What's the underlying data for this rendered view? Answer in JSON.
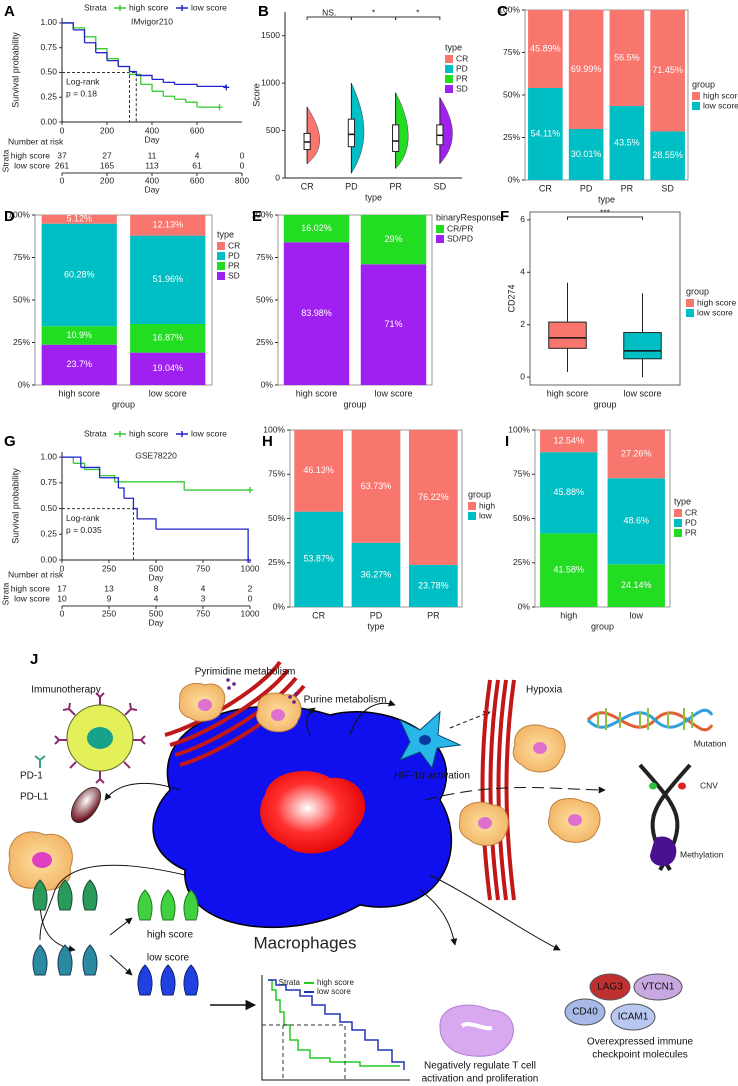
{
  "chart_data": [
    {
      "panel": "A",
      "type": "survival",
      "title": "IMvigor210",
      "legend_title": "Strata",
      "x_label": "Day",
      "y_label": "Survival probability",
      "xlim": [
        0,
        800
      ],
      "xticks": [
        0,
        200,
        400,
        600
      ],
      "ylim": [
        0,
        1.05
      ],
      "yticks": [
        {
          "value": 0,
          "label": "0.00"
        },
        0.25,
        {
          "value": 0.5,
          "label": "0.50"
        },
        0.75,
        {
          "value": 1,
          "label": "1.00"
        }
      ],
      "annotations": [
        "Log-rank",
        "p = 0.18"
      ],
      "series": [
        {
          "name": "high score",
          "color": "#33CC33",
          "x": [
            0,
            50,
            100,
            150,
            200,
            250,
            300,
            350,
            400,
            450,
            500,
            550,
            600,
            700
          ],
          "values": [
            1,
            0.95,
            0.86,
            0.74,
            0.64,
            0.56,
            0.48,
            0.38,
            0.31,
            0.26,
            0.23,
            0.2,
            0.15,
            0.15
          ],
          "median": 300
        },
        {
          "name": "low score",
          "color": "#2222CC",
          "x": [
            0,
            50,
            100,
            150,
            200,
            250,
            300,
            330,
            400,
            450,
            500,
            600,
            730
          ],
          "values": [
            1,
            0.93,
            0.8,
            0.7,
            0.62,
            0.56,
            0.51,
            0.47,
            0.43,
            0.4,
            0.38,
            0.36,
            0.35
          ],
          "median": 330
        }
      ],
      "risk_table": {
        "title": "Number at risk",
        "y_label": "Strata",
        "x_label": "Day",
        "xticks": [
          0,
          200,
          400,
          600,
          800
        ],
        "rows": [
          [
            37,
            27,
            11,
            4,
            0
          ],
          [
            261,
            165,
            113,
            61,
            0
          ]
        ]
      }
    },
    {
      "panel": "B",
      "type": "box",
      "violin": true,
      "y_label": "Score",
      "x_label": "type",
      "legend_title": "type",
      "categories": [
        "CR",
        "PD",
        "PR",
        "SD"
      ],
      "colors": [
        "#F8766D",
        "#00BFC4",
        "#22DD22",
        "#A020F0"
      ],
      "ylim": [
        0,
        1750
      ],
      "yticks": [
        0,
        500,
        1000,
        1500
      ],
      "significance": [
        "NS.",
        "*",
        "*"
      ],
      "boxes": [
        {
          "min": 150,
          "q1": 300,
          "median": 380,
          "q3": 470,
          "max": 750
        },
        {
          "min": 50,
          "q1": 330,
          "median": 460,
          "q3": 620,
          "max": 1000
        },
        {
          "min": 100,
          "q1": 280,
          "median": 390,
          "q3": 560,
          "max": 900
        },
        {
          "min": 150,
          "q1": 350,
          "median": 450,
          "q3": 560,
          "max": 850
        }
      ]
    },
    {
      "panel": "C",
      "type": "stacked_bar",
      "x_label": "type",
      "legend_title": "group",
      "categories": [
        "CR",
        "PD",
        "PR",
        "SD"
      ],
      "ylim": [
        0,
        100
      ],
      "yticks": [
        {
          "value": 0,
          "label": "0%"
        },
        {
          "value": 25,
          "label": "25%"
        },
        {
          "value": 50,
          "label": "50%"
        },
        {
          "value": 75,
          "label": "75%"
        },
        {
          "value": 100,
          "label": "100%"
        }
      ],
      "series": [
        {
          "name": "high score",
          "color": "#F8766D",
          "values": [
            45.89,
            69.99,
            56.5,
            71.45
          ],
          "value_labels": [
            "45.89%",
            "69.99%",
            "56.5%",
            "71.45%"
          ]
        },
        {
          "name": "low score",
          "color": "#00BFC4",
          "values": [
            54.11,
            30.01,
            43.5,
            28.55
          ],
          "value_labels": [
            "54.11%",
            "30.01%",
            "43.5%",
            "28.55%"
          ]
        }
      ]
    },
    {
      "panel": "D",
      "type": "stacked_bar",
      "x_label": "group",
      "legend_title": "type",
      "categories": [
        "high score",
        "low score"
      ],
      "ylim": [
        0,
        100
      ],
      "yticks": [
        {
          "value": 0,
          "label": "0%"
        },
        {
          "value": 25,
          "label": "25%"
        },
        {
          "value": 50,
          "label": "50%"
        },
        {
          "value": 75,
          "label": "75%"
        },
        {
          "value": 100,
          "label": "100%"
        }
      ],
      "series": [
        {
          "name": "CR",
          "color": "#F8766D",
          "values": [
            5.12,
            12.13
          ],
          "value_labels": [
            "5.12%",
            "12.13%"
          ]
        },
        {
          "name": "PD",
          "color": "#00BFC4",
          "values": [
            60.28,
            51.96
          ],
          "value_labels": [
            "60.28%",
            "51.96%"
          ]
        },
        {
          "name": "PR",
          "color": "#22DD22",
          "values": [
            10.9,
            16.87
          ],
          "value_labels": [
            "10.9%",
            "16.87%"
          ]
        },
        {
          "name": "SD",
          "color": "#A020F0",
          "values": [
            23.7,
            19.04
          ],
          "value_labels": [
            "23.7%",
            "19.04%"
          ]
        }
      ]
    },
    {
      "panel": "E",
      "type": "stacked_bar",
      "x_label": "group",
      "legend_title": "binaryResponse",
      "categories": [
        "high score",
        "low score"
      ],
      "ylim": [
        0,
        100
      ],
      "yticks": [
        {
          "value": 0,
          "label": "0%"
        },
        {
          "value": 25,
          "label": "25%"
        },
        {
          "value": 50,
          "label": "50%"
        },
        {
          "value": 75,
          "label": "75%"
        },
        {
          "value": 100,
          "label": "100%"
        }
      ],
      "series": [
        {
          "name": "CR/PR",
          "color": "#22DD22",
          "values": [
            16.02,
            29
          ],
          "value_labels": [
            "16.02%",
            "29%"
          ]
        },
        {
          "name": "SD/PD",
          "color": "#A020F0",
          "values": [
            83.98,
            71
          ],
          "value_labels": [
            "83.98%",
            "71%"
          ]
        }
      ]
    },
    {
      "panel": "F",
      "type": "box",
      "violin": false,
      "y_label": "CD274",
      "x_label": "group",
      "legend_title": "group",
      "categories": [
        "high score",
        "low score"
      ],
      "colors": [
        "#F8766D",
        "#00BFC4"
      ],
      "ylim": [
        -0.3,
        6.3
      ],
      "yticks": [
        0,
        2,
        4,
        6
      ],
      "significance": [
        "***"
      ],
      "boxes": [
        {
          "min": 0.2,
          "q1": 1.1,
          "median": 1.5,
          "q3": 2.1,
          "max": 3.6
        },
        {
          "min": 0,
          "q1": 0.7,
          "median": 1,
          "q3": 1.7,
          "max": 3.2
        }
      ]
    },
    {
      "panel": "G",
      "type": "survival",
      "title": "GSE78220",
      "legend_title": "Strata",
      "x_label": "Day",
      "y_label": "Survival probability",
      "xlim": [
        0,
        1000
      ],
      "xticks": [
        0,
        250,
        500,
        750,
        1000
      ],
      "ylim": [
        0,
        1.05
      ],
      "yticks": [
        {
          "value": 0,
          "label": "0.00"
        },
        0.25,
        {
          "value": 0.5,
          "label": "0.50"
        },
        0.75,
        {
          "value": 1,
          "label": "1.00"
        }
      ],
      "annotations": [
        "Log-rank",
        "p = 0.035"
      ],
      "series": [
        {
          "name": "high score",
          "color": "#33CC33",
          "x": [
            0,
            60,
            120,
            200,
            280,
            650,
            1000
          ],
          "values": [
            1,
            0.94,
            0.88,
            0.82,
            0.76,
            0.68,
            0.68
          ]
        },
        {
          "name": "low score",
          "color": "#2222CC",
          "x": [
            0,
            100,
            200,
            300,
            330,
            380,
            400,
            500,
            990
          ],
          "values": [
            1,
            0.9,
            0.8,
            0.7,
            0.6,
            0.5,
            0.4,
            0.3,
            0
          ],
          "median": 380
        }
      ],
      "risk_table": {
        "title": "Number at risk",
        "y_label": "Strata",
        "x_label": "Day",
        "xticks": [
          0,
          250,
          500,
          750,
          1000
        ],
        "rows": [
          [
            17,
            13,
            8,
            4,
            2
          ],
          [
            10,
            9,
            4,
            3,
            0
          ]
        ]
      }
    },
    {
      "panel": "H",
      "type": "stacked_bar",
      "x_label": "type",
      "legend_title": "group",
      "categories": [
        "CR",
        "PD",
        "PR"
      ],
      "ylim": [
        0,
        100
      ],
      "yticks": [
        {
          "value": 0,
          "label": "0%"
        },
        {
          "value": 25,
          "label": "25%"
        },
        {
          "value": 50,
          "label": "50%"
        },
        {
          "value": 75,
          "label": "75%"
        },
        {
          "value": 100,
          "label": "100%"
        }
      ],
      "series": [
        {
          "name": "high",
          "color": "#F8766D",
          "values": [
            46.13,
            63.73,
            76.22
          ],
          "value_labels": [
            "46.13%",
            "63.73%",
            "76.22%"
          ]
        },
        {
          "name": "low",
          "color": "#00BFC4",
          "values": [
            53.87,
            36.27,
            23.78
          ],
          "value_labels": [
            "53.87%",
            "36.27%",
            "23.78%"
          ]
        }
      ]
    },
    {
      "panel": "I",
      "type": "stacked_bar",
      "x_label": "group",
      "legend_title": "type",
      "categories": [
        "high",
        "low"
      ],
      "ylim": [
        0,
        100
      ],
      "yticks": [
        {
          "value": 0,
          "label": "0%"
        },
        {
          "value": 25,
          "label": "25%"
        },
        {
          "value": 50,
          "label": "50%"
        },
        {
          "value": 75,
          "label": "75%"
        },
        {
          "value": 100,
          "label": "100%"
        }
      ],
      "series": [
        {
          "name": "CR",
          "color": "#F8766D",
          "values": [
            12.54,
            27.26
          ],
          "value_labels": [
            "12.54%",
            "27.26%"
          ]
        },
        {
          "name": "PD",
          "color": "#00BFC4",
          "values": [
            45.88,
            48.6
          ],
          "value_labels": [
            "45.88%",
            "48.6%"
          ]
        },
        {
          "name": "PR",
          "color": "#22DD22",
          "values": [
            41.58,
            24.14
          ],
          "value_labels": [
            "41.58%",
            "24.14%"
          ]
        }
      ]
    }
  ],
  "diagram": {
    "label": "J",
    "immunotherapy": "Immunotherapy",
    "pd1": "PD-1",
    "pdl1": "PD-L1",
    "pyrimidine": "Pyrimidine metabolism",
    "purine": "Purine metabolism",
    "hif": "HIF-1α activation",
    "hypoxia": "Hypoxia",
    "mutation": "Mutation",
    "cnv": "CNV",
    "methylation": "Methylation",
    "macrophages": "Macrophages",
    "high_score": "high score",
    "low_score": "low score",
    "km_legend_title": "Strata",
    "km_high": "high score",
    "km_low": "low score",
    "checkpoints": [
      "LAG3",
      "VTCN1",
      "CD40",
      "ICAM1"
    ],
    "checkpoint_caption": [
      "Overexpressed immune",
      "checkpoint molecules"
    ],
    "t_cell_caption": [
      "Negatively regulate T cell",
      "activation and proliferation"
    ]
  }
}
